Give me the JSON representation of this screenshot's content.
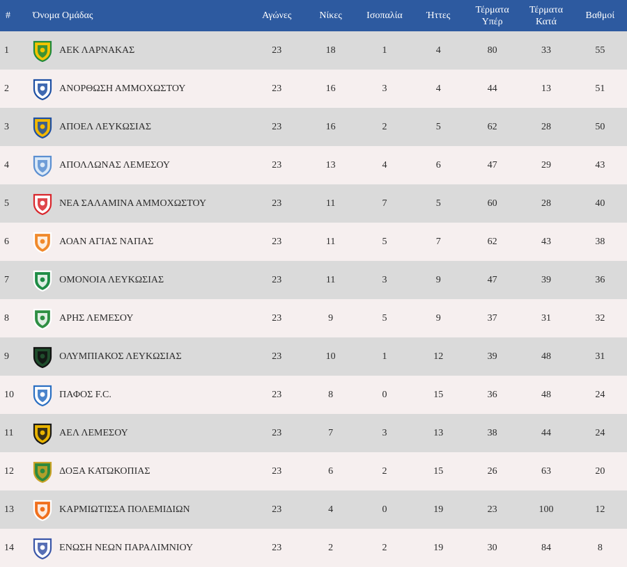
{
  "header": {
    "pos": "#",
    "team": "Όνομα Ομάδας",
    "played": "Αγώνες",
    "wins": "Νίκες",
    "draws": "Ισοπαλία",
    "losses": "Ήττες",
    "goals_for_line1": "Τέρματα",
    "goals_for_line2": "Υπέρ",
    "goals_against_line1": "Τέρματα",
    "goals_against_line2": "Κατά",
    "points": "Βαθμοί"
  },
  "rows": [
    {
      "pos": "1",
      "team": "ΑΕΚ ΛΑΡΝΑΚΑΣ",
      "played": "23",
      "wins": "18",
      "draws": "1",
      "losses": "4",
      "gf": "80",
      "ga": "33",
      "pts": "55",
      "logo": "aek-larnaca-crest-icon",
      "c1": "#f2c400",
      "c2": "#1f8a3c"
    },
    {
      "pos": "2",
      "team": "ΑΝΟΡΘΩΣΗ ΑΜΜΟΧΩΣΤΟΥ",
      "played": "23",
      "wins": "16",
      "draws": "3",
      "losses": "4",
      "gf": "44",
      "ga": "13",
      "pts": "51",
      "logo": "anorthosis-crest-icon",
      "c1": "#ffffff",
      "c2": "#1d4fa3"
    },
    {
      "pos": "3",
      "team": "ΑΠΟΕΛ ΛΕΥΚΩΣΙΑΣ",
      "played": "23",
      "wins": "16",
      "draws": "2",
      "losses": "5",
      "gf": "62",
      "ga": "28",
      "pts": "50",
      "logo": "apoel-crest-icon",
      "c1": "#f2b800",
      "c2": "#1d4fa3"
    },
    {
      "pos": "4",
      "team": "ΑΠΟΛΛΩΝΑΣ ΛΕΜΕΣΟΥ",
      "played": "23",
      "wins": "13",
      "draws": "4",
      "losses": "6",
      "gf": "47",
      "ga": "29",
      "pts": "43",
      "logo": "apollon-crest-icon",
      "c1": "#dbe9f7",
      "c2": "#5b8fd1"
    },
    {
      "pos": "5",
      "team": "ΝΕΑ ΣΑΛΑΜΙΝΑ ΑΜΜΟΧΩΣΤΟΥ",
      "played": "23",
      "wins": "11",
      "draws": "7",
      "losses": "5",
      "gf": "60",
      "ga": "28",
      "pts": "40",
      "logo": "nea-salamina-crest-icon",
      "c1": "#ffffff",
      "c2": "#d9262c"
    },
    {
      "pos": "6",
      "team": "ΑΟΑΝ ΑΓΙΑΣ ΝΑΠΑΣ",
      "played": "23",
      "wins": "11",
      "draws": "5",
      "losses": "7",
      "gf": "62",
      "ga": "43",
      "pts": "38",
      "logo": "aoan-crest-icon",
      "c1": "#f08a2c",
      "c2": "#ffffff"
    },
    {
      "pos": "7",
      "team": "ΟΜΟΝΟΙΑ ΛΕΥΚΩΣΙΑΣ",
      "played": "23",
      "wins": "11",
      "draws": "3",
      "losses": "9",
      "gf": "47",
      "ga": "39",
      "pts": "36",
      "logo": "omonia-crest-icon",
      "c1": "#1e8c46",
      "c2": "#ffffff"
    },
    {
      "pos": "8",
      "team": "ΑΡΗΣ ΛΕΜΕΣΟΥ",
      "played": "23",
      "wins": "9",
      "draws": "5",
      "losses": "9",
      "gf": "37",
      "ga": "31",
      "pts": "32",
      "logo": "aris-crest-icon",
      "c1": "#2f8f44",
      "c2": "#ffffff"
    },
    {
      "pos": "9",
      "team": "ΟΛΥΜΠΙΑΚΟΣ ΛΕΥΚΩΣΙΑΣ",
      "played": "23",
      "wins": "10",
      "draws": "1",
      "losses": "12",
      "gf": "39",
      "ga": "48",
      "pts": "31",
      "logo": "olympiakos-nicosia-crest-icon",
      "c1": "#1f4d2c",
      "c2": "#111111"
    },
    {
      "pos": "10",
      "team": "ΠΑΦΟΣ F.C.",
      "played": "23",
      "wins": "8",
      "draws": "0",
      "losses": "15",
      "gf": "36",
      "ga": "48",
      "pts": "24",
      "logo": "pafos-crest-icon",
      "c1": "#ffffff",
      "c2": "#2a6fc2"
    },
    {
      "pos": "11",
      "team": "ΑΕΛ ΛΕΜΕΣΟΥ",
      "played": "23",
      "wins": "7",
      "draws": "3",
      "losses": "13",
      "gf": "38",
      "ga": "44",
      "pts": "24",
      "logo": "ael-crest-icon",
      "c1": "#e9b400",
      "c2": "#1a1a1a"
    },
    {
      "pos": "12",
      "team": "ΔΟΞΑ ΚΑΤΩΚΟΠΙΑΣ",
      "played": "23",
      "wins": "6",
      "draws": "2",
      "losses": "15",
      "gf": "26",
      "ga": "63",
      "pts": "20",
      "logo": "doxa-crest-icon",
      "c1": "#2d8a3e",
      "c2": "#c9a227"
    },
    {
      "pos": "13",
      "team": "ΚΑΡΜΙΩΤΙΣΣΑ ΠΟΛΕΜΙΔΙΩΝ",
      "played": "23",
      "wins": "4",
      "draws": "0",
      "losses": "19",
      "gf": "23",
      "ga": "100",
      "pts": "12",
      "logo": "karmiotissa-crest-icon",
      "c1": "#f0701e",
      "c2": "#ffffff"
    },
    {
      "pos": "14",
      "team": "ΕΝΩΣΗ ΝΕΩΝ ΠΑΡΑΛΙΜΝΙΟΥ",
      "played": "23",
      "wins": "2",
      "draws": "2",
      "losses": "19",
      "gf": "30",
      "ga": "84",
      "pts": "8",
      "logo": "enp-crest-icon",
      "c1": "#ffffff",
      "c2": "#3a56a8"
    }
  ]
}
